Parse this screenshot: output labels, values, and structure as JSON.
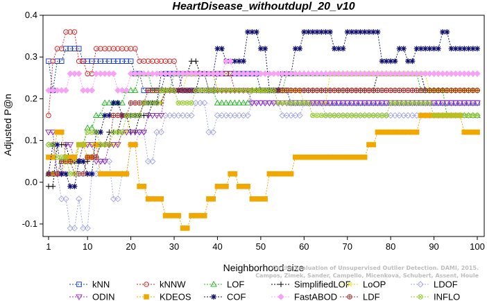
{
  "chart_data": {
    "type": "line",
    "title": "HeartDisease_withoutdupl_20_v10",
    "xlabel": "Neighborhood size",
    "ylabel": "Adjusted P@n",
    "xlim": [
      1,
      100
    ],
    "ylim": [
      -0.13,
      0.4
    ],
    "xticks": [
      1,
      10,
      20,
      30,
      40,
      50,
      60,
      70,
      80,
      90,
      100
    ],
    "yticks": [
      -0.1,
      0.0,
      0.1,
      0.2,
      0.3,
      0.4
    ],
    "grid": false,
    "legend_position": "bottom",
    "credit": [
      "Campos, Zimek, Sander, Campello, Micenkova, Schubert, Assent, Houle",
      "On the Evaluation of Unsupervised Outlier Detection. DAMI, 2015."
    ],
    "series": [
      {
        "name": "kNN",
        "color": "#1f3fbf",
        "marker": "square",
        "points": [
          [
            1,
            0.29
          ],
          [
            2,
            0.22
          ],
          [
            3,
            0.29
          ],
          [
            5,
            0.32
          ],
          [
            8,
            0.32
          ],
          [
            9,
            0.29
          ],
          [
            15,
            0.29
          ],
          [
            20,
            0.29
          ],
          [
            21,
            0.26
          ],
          [
            23,
            0.22
          ],
          [
            28,
            0.26
          ],
          [
            32,
            0.22
          ],
          [
            40,
            0.26
          ],
          [
            48,
            0.26
          ],
          [
            50,
            0.22
          ],
          [
            55,
            0.22
          ],
          [
            57,
            0.19
          ],
          [
            100,
            0.19
          ]
        ]
      },
      {
        "name": "kNNW",
        "color": "#d42a2a",
        "marker": "circle",
        "points": [
          [
            1,
            0.16
          ],
          [
            2,
            0.29
          ],
          [
            3,
            0.32
          ],
          [
            5,
            0.36
          ],
          [
            7,
            0.36
          ],
          [
            8,
            0.29
          ],
          [
            10,
            0.26
          ],
          [
            12,
            0.32
          ],
          [
            20,
            0.32
          ],
          [
            22,
            0.29
          ],
          [
            30,
            0.29
          ],
          [
            31,
            0.26
          ],
          [
            40,
            0.26
          ],
          [
            44,
            0.22
          ],
          [
            100,
            0.22
          ]
        ]
      },
      {
        "name": "LOF",
        "color": "#2fb82f",
        "marker": "triangle-up",
        "points": [
          [
            1,
            0.02
          ],
          [
            4,
            0.05
          ],
          [
            7,
            0.05
          ],
          [
            9,
            0.09
          ],
          [
            10,
            0.13
          ],
          [
            12,
            0.16
          ],
          [
            14,
            0.19
          ],
          [
            18,
            0.19
          ],
          [
            19,
            0.22
          ],
          [
            22,
            0.26
          ],
          [
            25,
            0.22
          ],
          [
            30,
            0.26
          ],
          [
            38,
            0.22
          ],
          [
            40,
            0.19
          ],
          [
            47,
            0.19
          ],
          [
            48,
            0.22
          ],
          [
            55,
            0.22
          ],
          [
            56,
            0.26
          ],
          [
            85,
            0.26
          ],
          [
            87,
            0.22
          ],
          [
            92,
            0.22
          ],
          [
            93,
            0.16
          ],
          [
            100,
            0.16
          ]
        ]
      },
      {
        "name": "SimplifiedLOF",
        "color": "#000000",
        "marker": "plus",
        "points": [
          [
            1,
            -0.01
          ],
          [
            3,
            0.09
          ],
          [
            6,
            0.05
          ],
          [
            9,
            0.05
          ],
          [
            11,
            0.06
          ],
          [
            13,
            0.09
          ],
          [
            15,
            0.12
          ],
          [
            18,
            0.16
          ],
          [
            20,
            0.12
          ],
          [
            22,
            0.16
          ],
          [
            25,
            0.19
          ],
          [
            28,
            0.22
          ],
          [
            32,
            0.26
          ],
          [
            34,
            0.29
          ],
          [
            36,
            0.26
          ],
          [
            40,
            0.22
          ],
          [
            55,
            0.22
          ],
          [
            60,
            0.22
          ],
          [
            77,
            0.26
          ],
          [
            86,
            0.26
          ],
          [
            88,
            0.22
          ],
          [
            100,
            0.22
          ]
        ]
      },
      {
        "name": "LoOP",
        "color": "#e6e600",
        "marker": "cross",
        "points": [
          [
            1,
            0.02
          ],
          [
            5,
            0.05
          ],
          [
            8,
            0.09
          ],
          [
            14,
            0.09
          ],
          [
            18,
            0.12
          ],
          [
            20,
            0.16
          ],
          [
            23,
            0.19
          ],
          [
            28,
            0.22
          ],
          [
            33,
            0.26
          ],
          [
            40,
            0.22
          ],
          [
            55,
            0.22
          ],
          [
            60,
            0.19
          ],
          [
            65,
            0.19
          ],
          [
            66,
            0.26
          ],
          [
            88,
            0.26
          ],
          [
            89,
            0.22
          ],
          [
            100,
            0.22
          ]
        ]
      },
      {
        "name": "LDOF",
        "color": "#a8a8e8",
        "marker": "diamond",
        "points": [
          [
            1,
            0.09
          ],
          [
            3,
            0.02
          ],
          [
            4,
            -0.04
          ],
          [
            6,
            -0.11
          ],
          [
            8,
            -0.04
          ],
          [
            9,
            -0.11
          ],
          [
            11,
            0.02
          ],
          [
            13,
            0.05
          ],
          [
            16,
            -0.04
          ],
          [
            18,
            0.02
          ],
          [
            20,
            0.09
          ],
          [
            22,
            0.12
          ],
          [
            24,
            0.05
          ],
          [
            26,
            0.12
          ],
          [
            28,
            0.16
          ],
          [
            35,
            0.19
          ],
          [
            38,
            0.12
          ],
          [
            40,
            0.16
          ],
          [
            45,
            0.16
          ],
          [
            48,
            0.19
          ],
          [
            55,
            0.16
          ],
          [
            60,
            0.19
          ],
          [
            65,
            0.16
          ],
          [
            100,
            0.16
          ]
        ]
      },
      {
        "name": "ODIN",
        "color": "#9b32c7",
        "marker": "triangle-down",
        "points": [
          [
            1,
            0.12
          ],
          [
            3,
            0.02
          ],
          [
            5,
            0.09
          ],
          [
            7,
            0.05
          ],
          [
            9,
            0.09
          ],
          [
            12,
            0.05
          ],
          [
            15,
            0.09
          ],
          [
            18,
            0.12
          ],
          [
            22,
            0.12
          ],
          [
            24,
            0.16
          ],
          [
            28,
            0.22
          ],
          [
            32,
            0.26
          ],
          [
            38,
            0.22
          ],
          [
            48,
            0.19
          ],
          [
            100,
            0.19
          ]
        ]
      },
      {
        "name": "KDEOS",
        "color": "#f0a800",
        "marker": "square-x",
        "points": [
          [
            1,
            0.06
          ],
          [
            3,
            0.12
          ],
          [
            5,
            0.06
          ],
          [
            8,
            0.09
          ],
          [
            10,
            0.06
          ],
          [
            12,
            0.09
          ],
          [
            13,
            0.02
          ],
          [
            18,
            0.02
          ],
          [
            20,
            0.09
          ],
          [
            22,
            -0.01
          ],
          [
            24,
            -0.04
          ],
          [
            26,
            -0.04
          ],
          [
            28,
            -0.08
          ],
          [
            32,
            -0.11
          ],
          [
            34,
            -0.08
          ],
          [
            38,
            -0.04
          ],
          [
            40,
            -0.01
          ],
          [
            43,
            0.02
          ],
          [
            45,
            -0.01
          ],
          [
            48,
            -0.04
          ],
          [
            52,
            0.02
          ],
          [
            55,
            0.02
          ],
          [
            58,
            0.06
          ],
          [
            65,
            0.06
          ],
          [
            72,
            0.06
          ],
          [
            75,
            0.09
          ],
          [
            77,
            0.12
          ],
          [
            83,
            0.12
          ],
          [
            87,
            0.16
          ],
          [
            96,
            0.16
          ],
          [
            97,
            0.12
          ],
          [
            100,
            0.12
          ]
        ]
      },
      {
        "name": "COF",
        "color": "#101070",
        "marker": "star",
        "points": [
          [
            1,
            0.02
          ],
          [
            2,
            0.09
          ],
          [
            4,
            0.02
          ],
          [
            6,
            -0.01
          ],
          [
            8,
            0.05
          ],
          [
            10,
            0.02
          ],
          [
            12,
            0.12
          ],
          [
            14,
            0.16
          ],
          [
            16,
            0.19
          ],
          [
            18,
            0.16
          ],
          [
            20,
            0.16
          ],
          [
            23,
            0.19
          ],
          [
            27,
            0.26
          ],
          [
            30,
            0.22
          ],
          [
            33,
            0.22
          ],
          [
            36,
            0.26
          ],
          [
            40,
            0.32
          ],
          [
            42,
            0.29
          ],
          [
            45,
            0.29
          ],
          [
            47,
            0.36
          ],
          [
            50,
            0.32
          ],
          [
            52,
            0.22
          ],
          [
            55,
            0.26
          ],
          [
            58,
            0.32
          ],
          [
            60,
            0.36
          ],
          [
            66,
            0.36
          ],
          [
            67,
            0.32
          ],
          [
            70,
            0.36
          ],
          [
            78,
            0.29
          ],
          [
            82,
            0.32
          ],
          [
            84,
            0.29
          ],
          [
            86,
            0.32
          ],
          [
            90,
            0.32
          ],
          [
            92,
            0.36
          ],
          [
            94,
            0.32
          ],
          [
            100,
            0.32
          ]
        ]
      },
      {
        "name": "FastABOD",
        "color": "#f5a3f5",
        "marker": "diamond-filled",
        "points": [
          [
            1,
            0.22
          ],
          [
            3,
            0.22
          ],
          [
            6,
            0.26
          ],
          [
            9,
            0.22
          ],
          [
            12,
            0.26
          ],
          [
            15,
            0.26
          ],
          [
            17,
            0.22
          ],
          [
            20,
            0.26
          ],
          [
            30,
            0.26
          ],
          [
            34,
            0.26
          ],
          [
            38,
            0.26
          ],
          [
            42,
            0.29
          ],
          [
            44,
            0.26
          ],
          [
            100,
            0.26
          ]
        ]
      },
      {
        "name": "LDF",
        "color": "#a83232",
        "marker": "circle-plus",
        "points": [
          [
            1,
            0.02
          ],
          [
            4,
            0.05
          ],
          [
            7,
            0.02
          ],
          [
            10,
            0.06
          ],
          [
            13,
            0.09
          ],
          [
            16,
            0.16
          ],
          [
            20,
            0.19
          ],
          [
            24,
            0.22
          ],
          [
            30,
            0.22
          ],
          [
            40,
            0.22
          ],
          [
            55,
            0.22
          ],
          [
            80,
            0.22
          ],
          [
            100,
            0.22
          ]
        ]
      },
      {
        "name": "INFLO",
        "color": "#99cc33",
        "marker": "circle-x",
        "points": [
          [
            1,
            0.09
          ],
          [
            3,
            0.06
          ],
          [
            6,
            0.02
          ],
          [
            8,
            0.09
          ],
          [
            10,
            0.12
          ],
          [
            13,
            0.09
          ],
          [
            16,
            0.12
          ],
          [
            19,
            0.16
          ],
          [
            23,
            0.19
          ],
          [
            27,
            0.22
          ],
          [
            31,
            0.19
          ],
          [
            35,
            0.22
          ],
          [
            40,
            0.22
          ],
          [
            48,
            0.22
          ],
          [
            54,
            0.19
          ],
          [
            58,
            0.19
          ],
          [
            62,
            0.16
          ],
          [
            70,
            0.16
          ],
          [
            75,
            0.16
          ],
          [
            80,
            0.19
          ],
          [
            86,
            0.19
          ],
          [
            90,
            0.16
          ],
          [
            100,
            0.16
          ]
        ]
      }
    ]
  }
}
